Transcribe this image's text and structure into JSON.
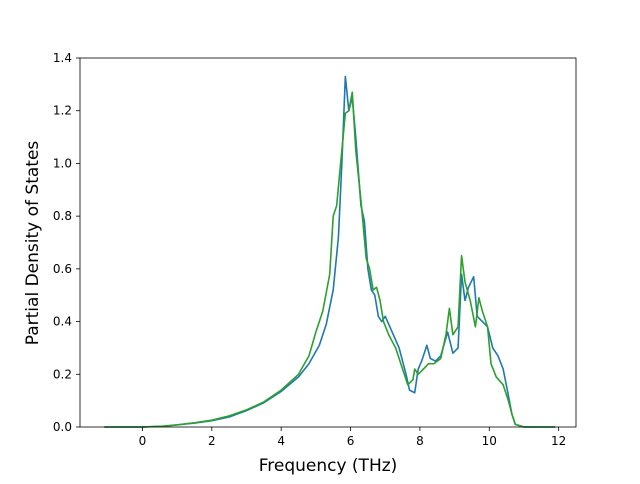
{
  "chart_data": {
    "type": "line",
    "title": "",
    "xlabel": "Frequency (THz)",
    "ylabel": "Partial Density of States",
    "xlim": [
      -1.8,
      12.5
    ],
    "ylim": [
      0,
      1.4
    ],
    "xticks": [
      0,
      2,
      4,
      6,
      8,
      10,
      12
    ],
    "yticks": [
      0.0,
      0.2,
      0.4,
      0.6,
      0.8,
      1.0,
      1.2,
      1.4
    ],
    "ytick_format": 1,
    "grid": false,
    "legend": "none",
    "series": [
      {
        "color": "#1f77b4",
        "points": [
          [
            -1.1,
            0.0
          ],
          [
            0.0,
            0.0
          ],
          [
            0.6,
            0.003
          ],
          [
            1.0,
            0.008
          ],
          [
            1.5,
            0.015
          ],
          [
            2.0,
            0.024
          ],
          [
            2.5,
            0.038
          ],
          [
            3.0,
            0.062
          ],
          [
            3.5,
            0.092
          ],
          [
            4.0,
            0.135
          ],
          [
            4.5,
            0.19
          ],
          [
            4.8,
            0.24
          ],
          [
            5.1,
            0.31
          ],
          [
            5.3,
            0.39
          ],
          [
            5.5,
            0.52
          ],
          [
            5.65,
            0.72
          ],
          [
            5.75,
            1.0
          ],
          [
            5.85,
            1.33
          ],
          [
            5.95,
            1.2
          ],
          [
            6.05,
            1.25
          ],
          [
            6.15,
            1.1
          ],
          [
            6.3,
            0.84
          ],
          [
            6.4,
            0.78
          ],
          [
            6.5,
            0.6
          ],
          [
            6.6,
            0.52
          ],
          [
            6.7,
            0.5
          ],
          [
            6.8,
            0.42
          ],
          [
            6.9,
            0.4
          ],
          [
            7.0,
            0.42
          ],
          [
            7.2,
            0.36
          ],
          [
            7.4,
            0.3
          ],
          [
            7.6,
            0.2
          ],
          [
            7.7,
            0.14
          ],
          [
            7.85,
            0.13
          ],
          [
            7.95,
            0.22
          ],
          [
            8.05,
            0.25
          ],
          [
            8.2,
            0.31
          ],
          [
            8.3,
            0.26
          ],
          [
            8.45,
            0.25
          ],
          [
            8.6,
            0.27
          ],
          [
            8.8,
            0.36
          ],
          [
            8.95,
            0.28
          ],
          [
            9.1,
            0.3
          ],
          [
            9.2,
            0.58
          ],
          [
            9.3,
            0.48
          ],
          [
            9.4,
            0.53
          ],
          [
            9.55,
            0.57
          ],
          [
            9.65,
            0.42
          ],
          [
            9.8,
            0.4
          ],
          [
            9.95,
            0.38
          ],
          [
            10.1,
            0.3
          ],
          [
            10.25,
            0.27
          ],
          [
            10.4,
            0.22
          ],
          [
            10.55,
            0.12
          ],
          [
            10.65,
            0.05
          ],
          [
            10.75,
            0.01
          ],
          [
            11.0,
            0.0
          ],
          [
            11.9,
            0.0
          ]
        ]
      },
      {
        "color": "#2ca02c",
        "points": [
          [
            -1.1,
            0.0
          ],
          [
            0.0,
            0.0
          ],
          [
            0.6,
            0.003
          ],
          [
            1.0,
            0.008
          ],
          [
            1.5,
            0.016
          ],
          [
            2.0,
            0.026
          ],
          [
            2.5,
            0.042
          ],
          [
            3.0,
            0.065
          ],
          [
            3.5,
            0.095
          ],
          [
            4.0,
            0.14
          ],
          [
            4.5,
            0.2
          ],
          [
            4.8,
            0.27
          ],
          [
            5.0,
            0.36
          ],
          [
            5.2,
            0.44
          ],
          [
            5.4,
            0.58
          ],
          [
            5.5,
            0.8
          ],
          [
            5.6,
            0.84
          ],
          [
            5.75,
            1.05
          ],
          [
            5.85,
            1.19
          ],
          [
            5.95,
            1.2
          ],
          [
            6.05,
            1.27
          ],
          [
            6.15,
            1.05
          ],
          [
            6.3,
            0.86
          ],
          [
            6.45,
            0.64
          ],
          [
            6.55,
            0.6
          ],
          [
            6.65,
            0.52
          ],
          [
            6.75,
            0.53
          ],
          [
            6.85,
            0.48
          ],
          [
            6.95,
            0.4
          ],
          [
            7.1,
            0.35
          ],
          [
            7.3,
            0.3
          ],
          [
            7.5,
            0.22
          ],
          [
            7.65,
            0.16
          ],
          [
            7.8,
            0.18
          ],
          [
            7.85,
            0.22
          ],
          [
            7.95,
            0.2
          ],
          [
            8.1,
            0.22
          ],
          [
            8.25,
            0.24
          ],
          [
            8.4,
            0.24
          ],
          [
            8.6,
            0.26
          ],
          [
            8.75,
            0.35
          ],
          [
            8.85,
            0.45
          ],
          [
            8.95,
            0.35
          ],
          [
            9.1,
            0.38
          ],
          [
            9.2,
            0.65
          ],
          [
            9.3,
            0.55
          ],
          [
            9.45,
            0.48
          ],
          [
            9.6,
            0.38
          ],
          [
            9.7,
            0.49
          ],
          [
            9.8,
            0.44
          ],
          [
            9.95,
            0.38
          ],
          [
            10.05,
            0.24
          ],
          [
            10.2,
            0.19
          ],
          [
            10.4,
            0.16
          ],
          [
            10.55,
            0.1
          ],
          [
            10.65,
            0.05
          ],
          [
            10.75,
            0.01
          ],
          [
            11.0,
            0.0
          ],
          [
            11.9,
            0.0
          ]
        ]
      }
    ]
  }
}
